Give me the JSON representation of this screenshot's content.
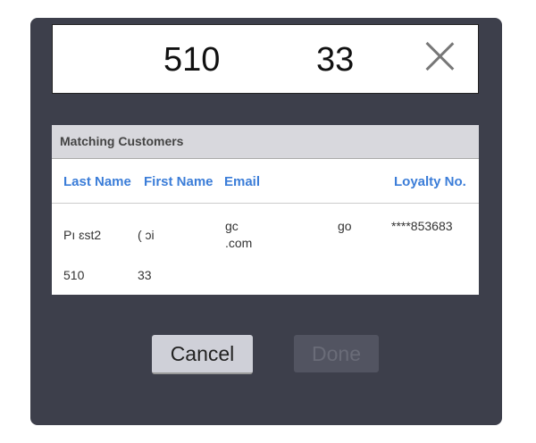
{
  "search": {
    "value_part1": "510",
    "value_part2": "33",
    "clear_icon": "close-icon"
  },
  "results": {
    "title": "Matching Customers",
    "columns": [
      "Last Name",
      "First Name",
      "Email",
      "Loyalty No."
    ],
    "rows": [
      {
        "last_name": "Pı     ɛst2",
        "first_name": "(  ɔi",
        "email_line1": "gc",
        "email_mid": "go",
        "email_line2": ".com",
        "loyalty": "****853683",
        "phone_part1": "510",
        "phone_part2": "33"
      }
    ]
  },
  "buttons": {
    "cancel": "Cancel",
    "done": "Done"
  }
}
